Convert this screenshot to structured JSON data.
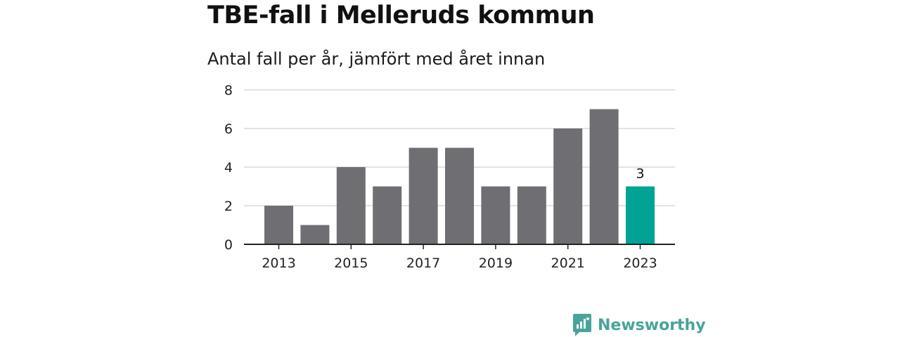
{
  "header": {
    "title": "TBE-fall i Melleruds kommun",
    "subtitle": "Antal fall per år, jämfört med året innan"
  },
  "brand": {
    "name": "Newsworthy",
    "icon": "chart-bubble-icon"
  },
  "colors": {
    "bar": "#6f6e73",
    "highlight": "#00a394",
    "grid": "#d9d9d9",
    "axis": "#222222",
    "brand": "#48a49a"
  },
  "chart_data": {
    "type": "bar",
    "categories": [
      "2013",
      "2014",
      "2015",
      "2016",
      "2017",
      "2018",
      "2019",
      "2020",
      "2021",
      "2022",
      "2023"
    ],
    "values": [
      2,
      1,
      4,
      3,
      5,
      5,
      3,
      3,
      6,
      7,
      3
    ],
    "x_tick_labels": [
      "2013",
      "2015",
      "2017",
      "2019",
      "2021",
      "2023"
    ],
    "y_ticks": [
      0,
      2,
      4,
      6,
      8
    ],
    "ylim": [
      0,
      8
    ],
    "grid": true,
    "highlight": {
      "category": "2023",
      "label": "3"
    }
  }
}
